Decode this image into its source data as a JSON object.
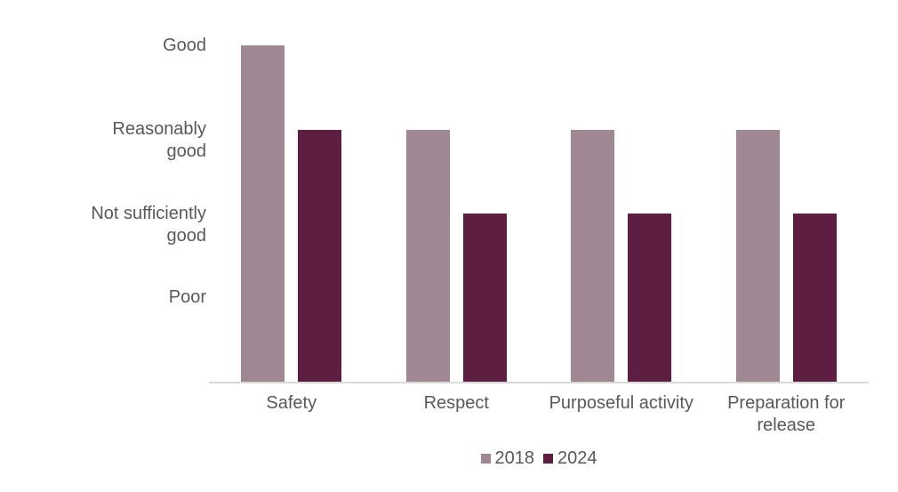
{
  "chart_data": {
    "type": "bar",
    "title": "",
    "xlabel": "",
    "ylabel": "",
    "categories": [
      "Safety",
      "Respect",
      "Purposeful activity",
      "Preparation for\nrelease"
    ],
    "series": [
      {
        "name": "2018",
        "color": "#9F8794",
        "values": [
          4,
          3,
          3,
          3
        ]
      },
      {
        "name": "2024",
        "color": "#5E1E42",
        "values": [
          3,
          2,
          2,
          2
        ]
      }
    ],
    "y_tick_labels": [
      {
        "label": "Good",
        "value": 4
      },
      {
        "label": "Reasonably\ngood",
        "value": 3
      },
      {
        "label": "Not sufficiently\ngood",
        "value": 2
      },
      {
        "label": "Poor",
        "value": 1
      }
    ],
    "rating_scale": "1=Poor, 2=Not sufficiently good, 3=Reasonably good, 4=Good",
    "ylim": [
      0,
      4
    ],
    "grid": false,
    "legend_position": "bottom-center"
  },
  "colors": {
    "background": "#ffffff",
    "text": "#595959",
    "axis_line": "#D9D9D9",
    "series_2018": "#9F8794",
    "series_2024": "#5E1E42"
  }
}
